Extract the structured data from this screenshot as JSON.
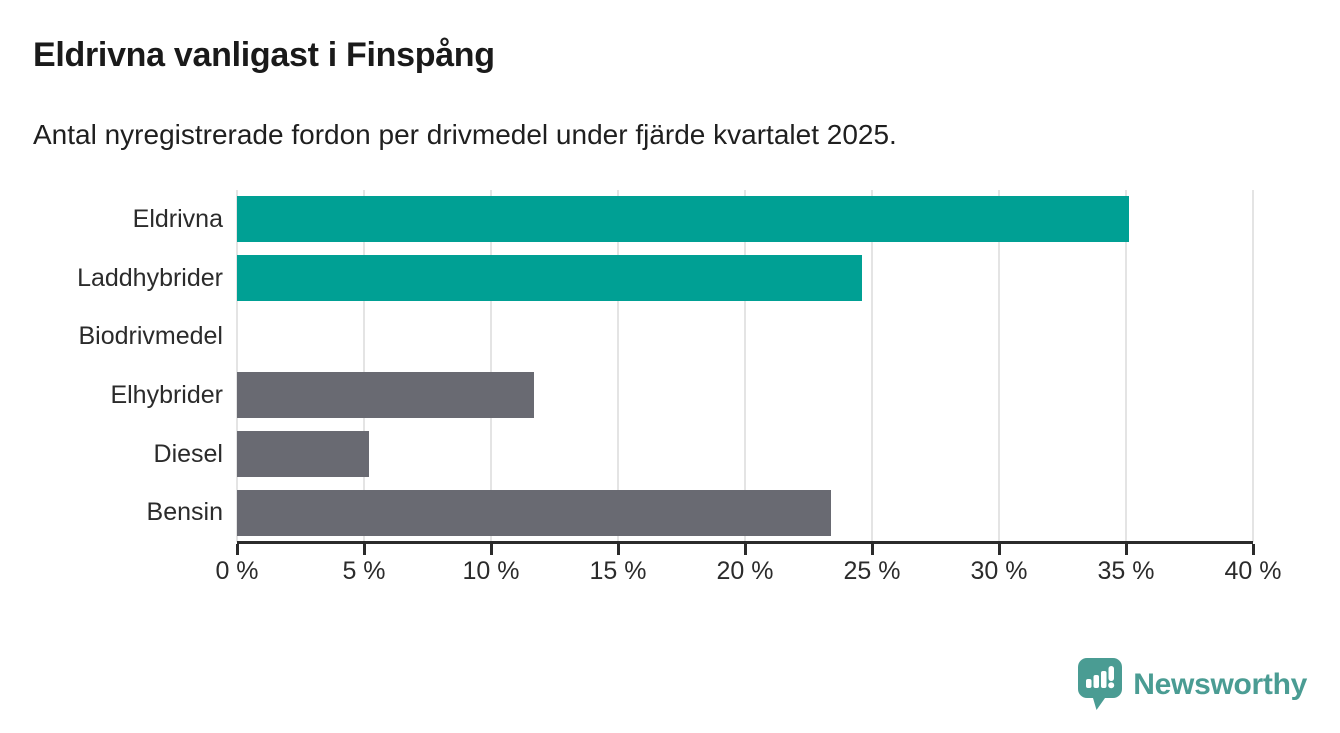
{
  "header": {
    "title": "Eldrivna vanligast i Finspång",
    "subtitle": "Antal nyregistrerade fordon per drivmedel under fjärde kvartalet 2025."
  },
  "chart_data": {
    "type": "bar",
    "orientation": "horizontal",
    "title": "Eldrivna vanligast i Finspång",
    "subtitle": "Antal nyregistrerade fordon per drivmedel under fjärde kvartalet 2025.",
    "categories": [
      "Eldrivna",
      "Laddhybrider",
      "Biodrivmedel",
      "Elhybrider",
      "Diesel",
      "Bensin"
    ],
    "values": [
      35.1,
      24.6,
      0,
      11.7,
      5.2,
      23.4
    ],
    "unit": "%",
    "bar_colors": [
      "#00a094",
      "#00a094",
      "#00a094",
      "#696a72",
      "#696a72",
      "#696a72"
    ],
    "xlabel": "",
    "ylabel": "",
    "xlim": [
      0,
      40
    ],
    "x_ticks": [
      0,
      5,
      10,
      15,
      20,
      25,
      30,
      35,
      40
    ],
    "x_tick_labels": [
      "0 %",
      "5 %",
      "10 %",
      "15 %",
      "20 %",
      "25 %",
      "30 %",
      "35 %",
      "40 %"
    ],
    "grid": "vertical",
    "legend": "none"
  },
  "colors": {
    "highlight": "#00a094",
    "neutral": "#696a72",
    "gridline": "#e4e4e4",
    "axis": "#2b2b2b",
    "text": "#1a1a1a",
    "brand": "#4a9c93"
  },
  "footer": {
    "brand": "Newsworthy"
  }
}
